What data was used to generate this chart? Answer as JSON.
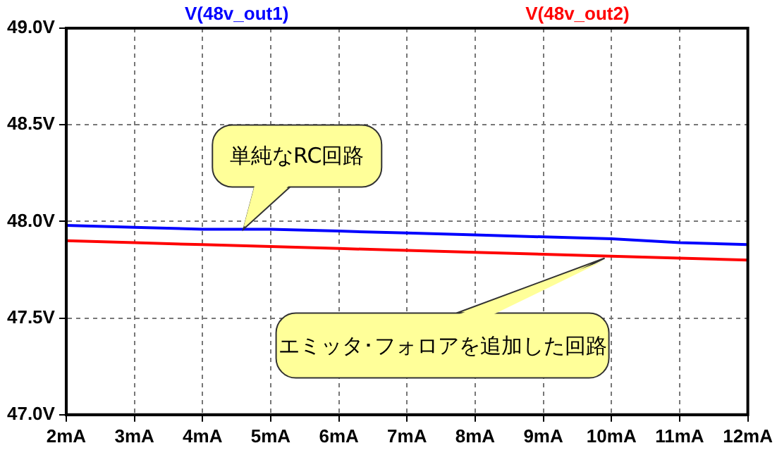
{
  "chart_data": {
    "type": "line",
    "x": [
      2,
      3,
      4,
      5,
      6,
      7,
      8,
      9,
      10,
      11,
      12
    ],
    "series": [
      {
        "name": "V(48v_out1)",
        "color": "#0000ff",
        "values": [
          47.98,
          47.97,
          47.96,
          47.96,
          47.95,
          47.94,
          47.93,
          47.92,
          47.91,
          47.89,
          47.88
        ]
      },
      {
        "name": "V(48v_out2)",
        "color": "#ff0000",
        "values": [
          47.9,
          47.89,
          47.88,
          47.87,
          47.86,
          47.85,
          47.84,
          47.83,
          47.82,
          47.81,
          47.8
        ]
      }
    ],
    "xlim": [
      2,
      12
    ],
    "xticks": [
      {
        "value": 2,
        "label": "2mA"
      },
      {
        "value": 3,
        "label": "3mA"
      },
      {
        "value": 4,
        "label": "4mA"
      },
      {
        "value": 5,
        "label": "5mA"
      },
      {
        "value": 6,
        "label": "6mA"
      },
      {
        "value": 7,
        "label": "7mA"
      },
      {
        "value": 8,
        "label": "8mA"
      },
      {
        "value": 9,
        "label": "9mA"
      },
      {
        "value": 10,
        "label": "10mA"
      },
      {
        "value": 11,
        "label": "11mA"
      },
      {
        "value": 12,
        "label": "12mA"
      }
    ],
    "ylim": [
      47,
      49
    ],
    "yticks": [
      {
        "value": 47,
        "label": "47.0V"
      },
      {
        "value": 47.5,
        "label": "47.5V"
      },
      {
        "value": 48,
        "label": "48.0V"
      },
      {
        "value": 48.5,
        "label": "48.5V"
      },
      {
        "value": 49,
        "label": "49.0V"
      }
    ],
    "grid": true,
    "legend": "top",
    "marker": "none",
    "line_style": "solid",
    "annotations": [
      {
        "text": "単純なRC回路",
        "x": 4.6,
        "y": 47.96
      },
      {
        "text": "エミッタ･フォロアを追加した回路",
        "x": 9.9,
        "y": 47.81
      }
    ]
  }
}
